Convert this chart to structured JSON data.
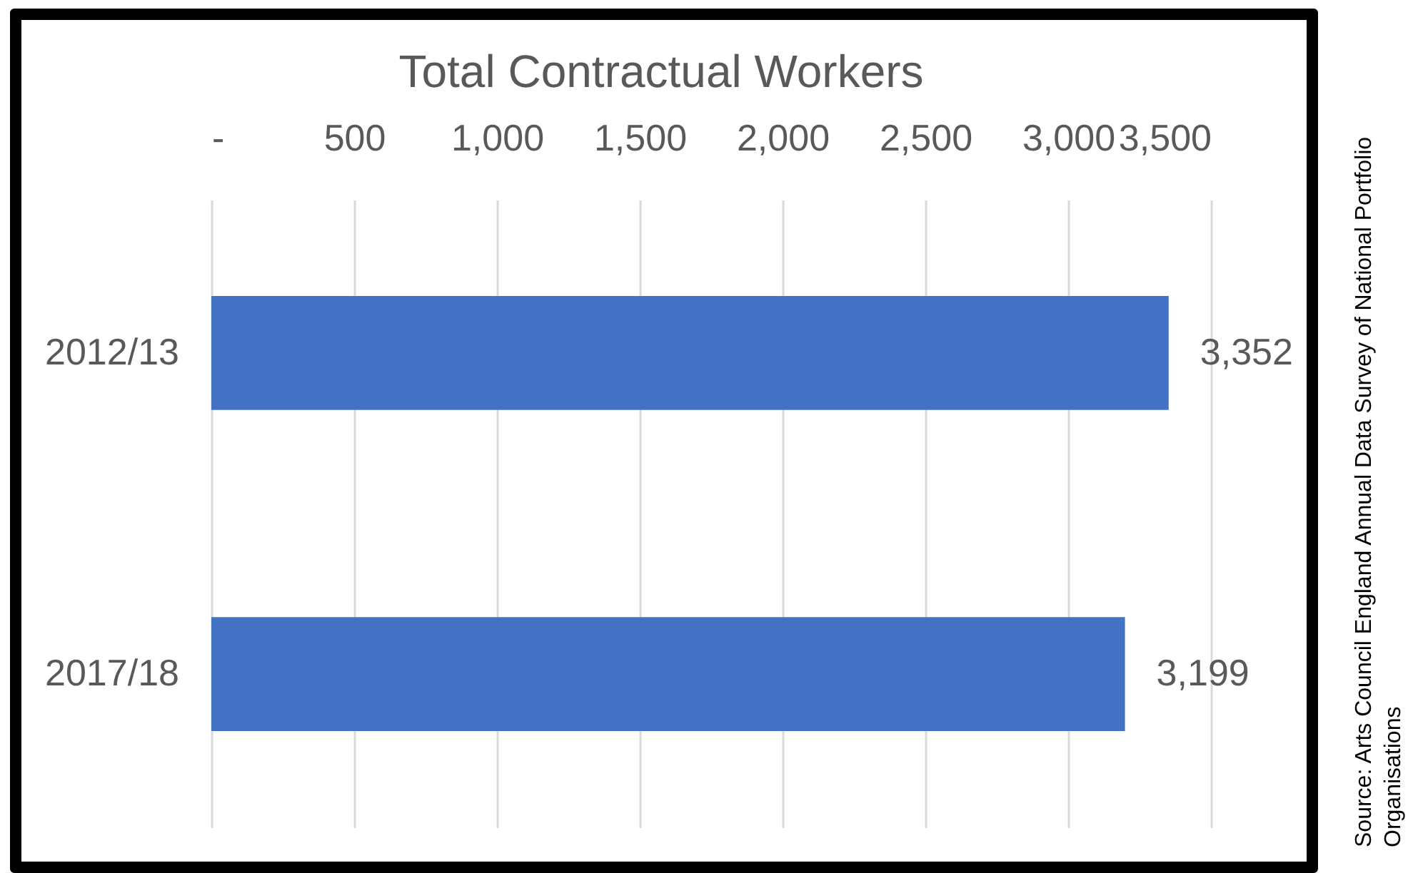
{
  "chart_data": {
    "type": "bar",
    "orientation": "horizontal",
    "title": "Total Contractual Workers",
    "categories": [
      "2012/13",
      "2017/18"
    ],
    "values": [
      3352,
      3199
    ],
    "color": "#4472c4",
    "value_labels": [
      "3,352",
      "3,199"
    ],
    "xlim": [
      0,
      3500
    ],
    "xticks": [
      {
        "value": 0,
        "label": "-"
      },
      500,
      {
        "value": 1000,
        "label": "1,000"
      },
      {
        "value": 1500,
        "label": "1,500"
      },
      {
        "value": 2000,
        "label": "2,000"
      },
      {
        "value": 2500,
        "label": "2,500"
      },
      {
        "value": 3000,
        "label": "3,000"
      },
      {
        "value": 3500,
        "label": "3,500"
      }
    ],
    "grid": "x",
    "annotations": [
      "Source: Arts Council England Annual Data Survey of National Portfolio Organisations"
    ]
  }
}
